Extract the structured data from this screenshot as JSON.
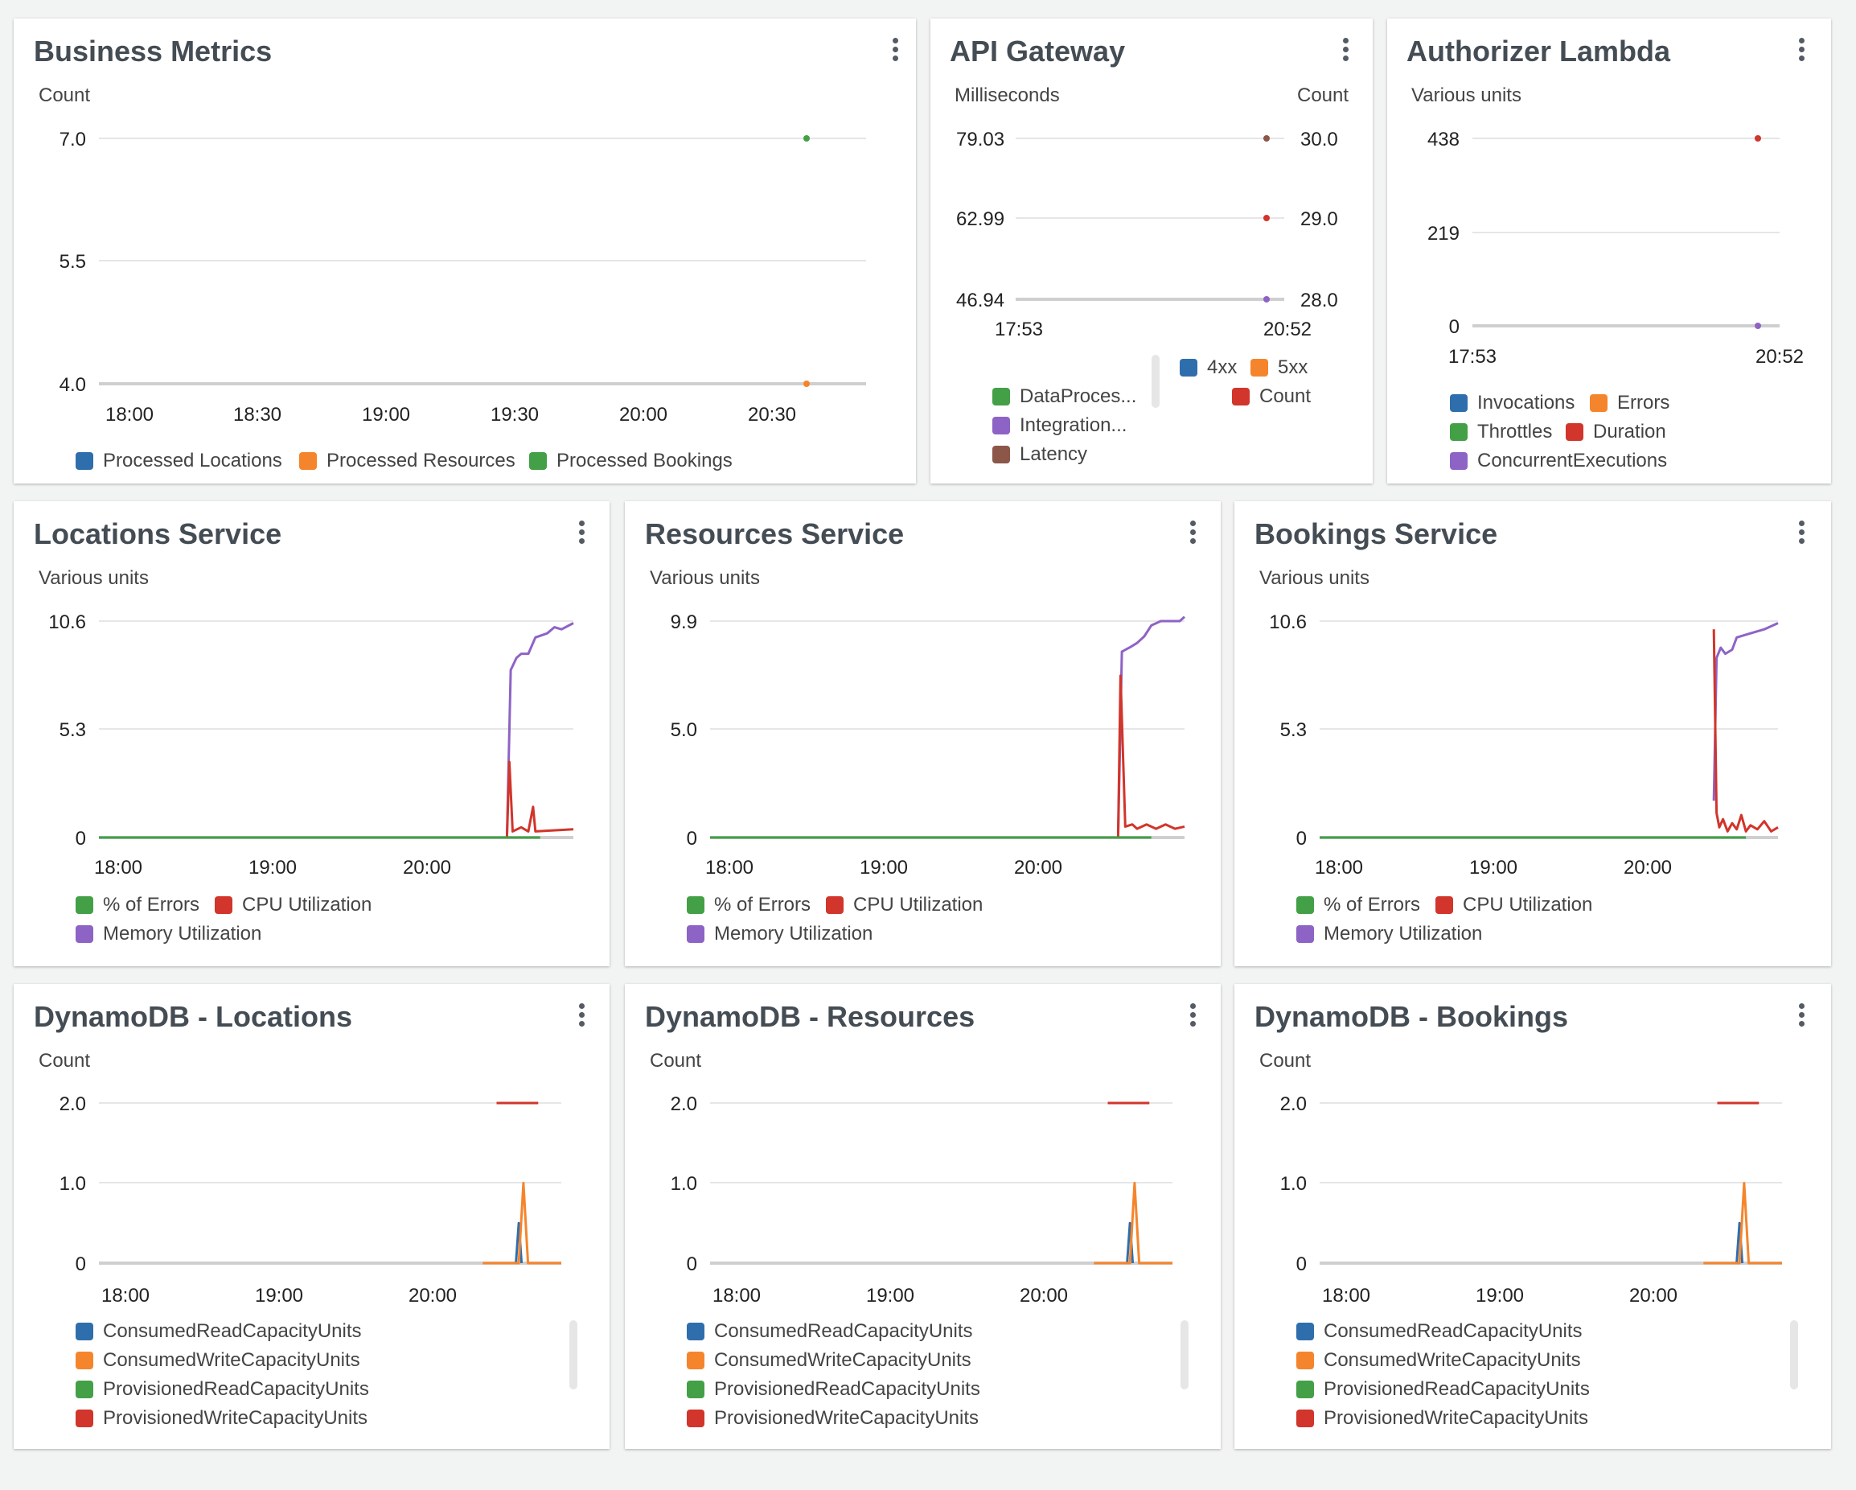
{
  "colors": {
    "blue": "#2f6ead",
    "orange": "#f5852c",
    "green": "#43a047",
    "red": "#d1352b",
    "purple": "#8e63c6",
    "brown": "#8c5649"
  },
  "widgets": [
    {
      "id": "business-metrics",
      "title": "Business Metrics",
      "unit_left": "Count",
      "legend": [
        {
          "label": "Processed Locations",
          "color": "blue"
        },
        {
          "label": "Processed Resources",
          "color": "orange"
        },
        {
          "label": "Processed Bookings",
          "color": "green"
        }
      ],
      "chart_data": {
        "type": "line",
        "x_ticks": [
          "18:00",
          "18:30",
          "19:00",
          "19:30",
          "20:00",
          "20:30"
        ],
        "x_range": [
          "17:53",
          "20:53"
        ],
        "y_ticks": [
          "7.0",
          "5.5",
          "4.0"
        ],
        "ylim": [
          4.0,
          7.0
        ],
        "series": [
          {
            "name": "Processed Bookings",
            "color": "green",
            "points": [
              [
                "20:39",
                7.0
              ]
            ]
          },
          {
            "name": "Processed Resources",
            "color": "orange",
            "points": [
              [
                "20:39",
                4.0
              ]
            ]
          }
        ]
      }
    },
    {
      "id": "api-gateway",
      "title": "API Gateway",
      "unit_left": "Milliseconds",
      "unit_right": "Count",
      "legend": [
        {
          "label": "4xx",
          "color": "blue"
        },
        {
          "label": "5xx",
          "color": "orange"
        },
        {
          "label": "DataProces...",
          "color": "green"
        },
        {
          "label": "Count",
          "color": "red"
        },
        {
          "label": "Integration...",
          "color": "purple"
        },
        {
          "label": "Latency",
          "color": "brown"
        }
      ],
      "chart_data": {
        "type": "line",
        "x_ticks": [
          "17:53",
          "20:52"
        ],
        "y_ticks_left": [
          "79.03",
          "62.99",
          "46.94"
        ],
        "y_ticks_right": [
          "30.0",
          "29.0",
          "28.0"
        ],
        "ylim_left": [
          46.94,
          79.03
        ],
        "ylim_right": [
          28.0,
          30.0
        ],
        "series": [
          {
            "name": "Latency",
            "color": "brown",
            "points": [
              [
                "20:52",
                79.03
              ]
            ]
          },
          {
            "name": "Count",
            "color": "red",
            "points": [
              [
                "20:52",
                29.0
              ]
            ]
          },
          {
            "name": "Integration...",
            "color": "purple",
            "points": [
              [
                "20:52",
                46.94
              ]
            ]
          }
        ]
      }
    },
    {
      "id": "authorizer-lambda",
      "title": "Authorizer Lambda",
      "unit_left": "Various units",
      "legend": [
        {
          "label": "Invocations",
          "color": "blue"
        },
        {
          "label": "Errors",
          "color": "orange"
        },
        {
          "label": "Throttles",
          "color": "green"
        },
        {
          "label": "Duration",
          "color": "red"
        },
        {
          "label": "ConcurrentExecutions",
          "color": "purple"
        }
      ],
      "chart_data": {
        "type": "line",
        "x_ticks": [
          "17:53",
          "20:52"
        ],
        "y_ticks": [
          "438",
          "219",
          "0"
        ],
        "ylim": [
          0,
          438
        ],
        "series": [
          {
            "name": "Duration",
            "color": "red",
            "points": [
              [
                "20:52",
                438
              ]
            ]
          },
          {
            "name": "ConcurrentExecutions",
            "color": "purple",
            "points": [
              [
                "20:52",
                0
              ]
            ]
          }
        ]
      }
    },
    {
      "id": "locations-service",
      "title": "Locations Service",
      "unit_left": "Various units",
      "legend": [
        {
          "label": "% of Errors",
          "color": "green"
        },
        {
          "label": "CPU Utilization",
          "color": "red"
        },
        {
          "label": "Memory Utilization",
          "color": "purple"
        }
      ],
      "chart_data": {
        "type": "line",
        "x_ticks": [
          "18:00",
          "19:00",
          "20:00"
        ],
        "y_ticks": [
          "10.6",
          "5.3",
          "0"
        ],
        "ylim": [
          0,
          10.6
        ],
        "series": [
          {
            "name": "Memory Utilization",
            "color": "purple",
            "values": [
              [
                0.0,
                0
              ],
              [
                0.86,
                0
              ],
              [
                0.868,
                8.2
              ],
              [
                0.88,
                8.8
              ],
              [
                0.89,
                9.0
              ],
              [
                0.905,
                9.0
              ],
              [
                0.92,
                9.8
              ],
              [
                0.945,
                10.0
              ],
              [
                0.96,
                10.3
              ],
              [
                0.975,
                10.2
              ],
              [
                1.0,
                10.5
              ]
            ]
          },
          {
            "name": "CPU Utilization",
            "color": "red",
            "values": [
              [
                0.86,
                0
              ],
              [
                0.865,
                3.7
              ],
              [
                0.872,
                0.3
              ],
              [
                0.89,
                0.5
              ],
              [
                0.905,
                0.3
              ],
              [
                0.915,
                1.5
              ],
              [
                0.92,
                0.3
              ],
              [
                1.0,
                0.4
              ]
            ]
          },
          {
            "name": "% of Errors",
            "color": "green",
            "values": [
              [
                0.0,
                0
              ],
              [
                0.93,
                0
              ]
            ]
          }
        ]
      }
    },
    {
      "id": "resources-service",
      "title": "Resources Service",
      "unit_left": "Various units",
      "legend": [
        {
          "label": "% of Errors",
          "color": "green"
        },
        {
          "label": "CPU Utilization",
          "color": "red"
        },
        {
          "label": "Memory Utilization",
          "color": "purple"
        }
      ],
      "chart_data": {
        "type": "line",
        "x_ticks": [
          "18:00",
          "19:00",
          "20:00"
        ],
        "y_ticks": [
          "9.9",
          "5.0",
          "0"
        ],
        "ylim": [
          0,
          9.9
        ],
        "series": [
          {
            "name": "Memory Utilization",
            "color": "purple",
            "values": [
              [
                0.0,
                0
              ],
              [
                0.86,
                0
              ],
              [
                0.868,
                8.5
              ],
              [
                0.885,
                8.7
              ],
              [
                0.9,
                8.9
              ],
              [
                0.915,
                9.2
              ],
              [
                0.93,
                9.7
              ],
              [
                0.95,
                9.9
              ],
              [
                0.99,
                9.9
              ],
              [
                1.0,
                10.1
              ]
            ]
          },
          {
            "name": "CPU Utilization",
            "color": "red",
            "values": [
              [
                0.86,
                0
              ],
              [
                0.865,
                7.4
              ],
              [
                0.875,
                0.5
              ],
              [
                0.89,
                0.6
              ],
              [
                0.9,
                0.4
              ],
              [
                0.92,
                0.6
              ],
              [
                0.94,
                0.4
              ],
              [
                0.96,
                0.6
              ],
              [
                0.98,
                0.4
              ],
              [
                1.0,
                0.5
              ]
            ]
          },
          {
            "name": "% of Errors",
            "color": "green",
            "values": [
              [
                0.0,
                0
              ],
              [
                0.93,
                0
              ]
            ]
          }
        ]
      }
    },
    {
      "id": "bookings-service",
      "title": "Bookings Service",
      "unit_left": "Various units",
      "legend": [
        {
          "label": "% of Errors",
          "color": "green"
        },
        {
          "label": "CPU Utilization",
          "color": "red"
        },
        {
          "label": "Memory Utilization",
          "color": "purple"
        }
      ],
      "chart_data": {
        "type": "line",
        "x_ticks": [
          "18:00",
          "19:00",
          "20:00"
        ],
        "y_ticks": [
          "10.6",
          "5.3",
          "0"
        ],
        "ylim": [
          0,
          10.6
        ],
        "series": [
          {
            "name": "Memory Utilization",
            "color": "purple",
            "values": [
              [
                0.86,
                1.8
              ],
              [
                0.866,
                8.8
              ],
              [
                0.875,
                9.3
              ],
              [
                0.885,
                9.0
              ],
              [
                0.9,
                9.2
              ],
              [
                0.91,
                9.8
              ],
              [
                0.94,
                10.0
              ],
              [
                0.97,
                10.2
              ],
              [
                1.0,
                10.5
              ]
            ]
          },
          {
            "name": "CPU Utilization",
            "color": "red",
            "values": [
              [
                0.86,
                10.2
              ],
              [
                0.866,
                1.2
              ],
              [
                0.872,
                0.5
              ],
              [
                0.88,
                0.9
              ],
              [
                0.89,
                0.3
              ],
              [
                0.9,
                0.7
              ],
              [
                0.91,
                0.4
              ],
              [
                0.92,
                1.1
              ],
              [
                0.93,
                0.3
              ],
              [
                0.94,
                0.6
              ],
              [
                0.955,
                0.4
              ],
              [
                0.97,
                0.8
              ],
              [
                0.985,
                0.3
              ],
              [
                1.0,
                0.5
              ]
            ]
          },
          {
            "name": "% of Errors",
            "color": "green",
            "values": [
              [
                0.0,
                0
              ],
              [
                0.93,
                0
              ]
            ]
          }
        ]
      }
    },
    {
      "id": "dynamodb-locations",
      "title": "DynamoDB - Locations",
      "unit_left": "Count",
      "legend": [
        {
          "label": "ConsumedReadCapacityUnits",
          "color": "blue"
        },
        {
          "label": "ConsumedWriteCapacityUnits",
          "color": "orange"
        },
        {
          "label": "ProvisionedReadCapacityUnits",
          "color": "green"
        },
        {
          "label": "ProvisionedWriteCapacityUnits",
          "color": "red"
        }
      ],
      "chart_data": {
        "type": "line",
        "x_ticks": [
          "18:00",
          "19:00",
          "20:00"
        ],
        "y_ticks": [
          "2.0",
          "1.0",
          "0"
        ],
        "ylim": [
          0,
          2.0
        ],
        "series": [
          {
            "name": "ProvisionedWriteCapacityUnits",
            "color": "red",
            "values": [
              [
                0.86,
                2.0
              ],
              [
                0.95,
                2.0
              ]
            ]
          },
          {
            "name": "ConsumedReadCapacityUnits",
            "color": "blue",
            "values": [
              [
                0.84,
                0
              ],
              [
                0.902,
                0
              ],
              [
                0.908,
                0.5
              ],
              [
                0.914,
                0
              ]
            ]
          },
          {
            "name": "ConsumedWriteCapacityUnits",
            "color": "orange",
            "values": [
              [
                0.83,
                0
              ],
              [
                0.908,
                0
              ],
              [
                0.918,
                1.0
              ],
              [
                0.928,
                0
              ],
              [
                1.0,
                0
              ]
            ]
          }
        ]
      }
    },
    {
      "id": "dynamodb-resources",
      "title": "DynamoDB - Resources",
      "unit_left": "Count",
      "legend": [
        {
          "label": "ConsumedReadCapacityUnits",
          "color": "blue"
        },
        {
          "label": "ConsumedWriteCapacityUnits",
          "color": "orange"
        },
        {
          "label": "ProvisionedReadCapacityUnits",
          "color": "green"
        },
        {
          "label": "ProvisionedWriteCapacityUnits",
          "color": "red"
        }
      ],
      "chart_data": {
        "type": "line",
        "x_ticks": [
          "18:00",
          "19:00",
          "20:00"
        ],
        "y_ticks": [
          "2.0",
          "1.0",
          "0"
        ],
        "ylim": [
          0,
          2.0
        ],
        "series": [
          {
            "name": "ProvisionedWriteCapacityUnits",
            "color": "red",
            "values": [
              [
                0.86,
                2.0
              ],
              [
                0.95,
                2.0
              ]
            ]
          },
          {
            "name": "ConsumedReadCapacityUnits",
            "color": "blue",
            "values": [
              [
                0.84,
                0
              ],
              [
                0.902,
                0
              ],
              [
                0.908,
                0.5
              ],
              [
                0.914,
                0
              ]
            ]
          },
          {
            "name": "ConsumedWriteCapacityUnits",
            "color": "orange",
            "values": [
              [
                0.83,
                0
              ],
              [
                0.908,
                0
              ],
              [
                0.918,
                1.0
              ],
              [
                0.928,
                0
              ],
              [
                1.0,
                0
              ]
            ]
          }
        ]
      }
    },
    {
      "id": "dynamodb-bookings",
      "title": "DynamoDB - Bookings",
      "unit_left": "Count",
      "legend": [
        {
          "label": "ConsumedReadCapacityUnits",
          "color": "blue"
        },
        {
          "label": "ConsumedWriteCapacityUnits",
          "color": "orange"
        },
        {
          "label": "ProvisionedReadCapacityUnits",
          "color": "green"
        },
        {
          "label": "ProvisionedWriteCapacityUnits",
          "color": "red"
        }
      ],
      "chart_data": {
        "type": "line",
        "x_ticks": [
          "18:00",
          "19:00",
          "20:00"
        ],
        "y_ticks": [
          "2.0",
          "1.0",
          "0"
        ],
        "ylim": [
          0,
          2.0
        ],
        "series": [
          {
            "name": "ProvisionedWriteCapacityUnits",
            "color": "red",
            "values": [
              [
                0.86,
                2.0
              ],
              [
                0.95,
                2.0
              ]
            ]
          },
          {
            "name": "ConsumedReadCapacityUnits",
            "color": "blue",
            "values": [
              [
                0.84,
                0
              ],
              [
                0.902,
                0
              ],
              [
                0.908,
                0.5
              ],
              [
                0.914,
                0
              ]
            ]
          },
          {
            "name": "ConsumedWriteCapacityUnits",
            "color": "orange",
            "values": [
              [
                0.83,
                0
              ],
              [
                0.908,
                0
              ],
              [
                0.918,
                1.0
              ],
              [
                0.928,
                0
              ],
              [
                1.0,
                0
              ]
            ]
          }
        ]
      }
    }
  ]
}
